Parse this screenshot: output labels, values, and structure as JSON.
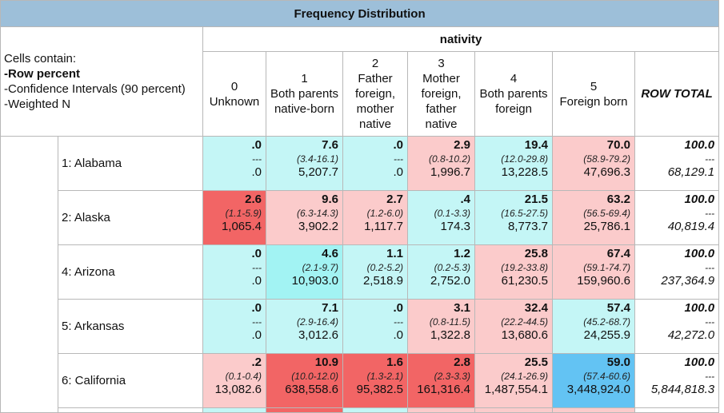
{
  "title": "Frequency Distribution",
  "column_variable": "nativity",
  "legend": {
    "line1": "Cells contain:",
    "line2": "-Row percent",
    "line3": "-Confidence Intervals (90 percent)",
    "line4": "-Weighted N"
  },
  "columns": [
    {
      "code": "0",
      "label": "Unknown"
    },
    {
      "code": "1",
      "label": "Both parents native-born"
    },
    {
      "code": "2",
      "label": "Father foreign, mother native"
    },
    {
      "code": "3",
      "label": "Mother foreign, father native"
    },
    {
      "code": "4",
      "label": "Both parents foreign"
    },
    {
      "code": "5",
      "label": "Foreign born"
    },
    {
      "code": "",
      "label": "ROW TOTAL"
    }
  ],
  "colors": {
    "header_bg": "#9dbfd9",
    "light_cyan": "#c4f6f6",
    "cyan": "#a2f3f3",
    "blue": "#63c3f3",
    "light_pink": "#fbcbcb",
    "pink": "#f7a1a1",
    "red": "#f26565",
    "white": "#ffffff"
  },
  "rows": [
    {
      "label": "1: Alabama",
      "cells": [
        {
          "v": ".0",
          "ci": "---",
          "n": ".0",
          "bg": "light_cyan"
        },
        {
          "v": "7.6",
          "ci": "(3.4-16.1)",
          "n": "5,207.7",
          "bg": "light_cyan"
        },
        {
          "v": ".0",
          "ci": "---",
          "n": ".0",
          "bg": "light_cyan"
        },
        {
          "v": "2.9",
          "ci": "(0.8-10.2)",
          "n": "1,996.7",
          "bg": "light_pink"
        },
        {
          "v": "19.4",
          "ci": "(12.0-29.8)",
          "n": "13,228.5",
          "bg": "light_cyan"
        },
        {
          "v": "70.0",
          "ci": "(58.9-79.2)",
          "n": "47,696.3",
          "bg": "light_pink"
        },
        {
          "v": "100.0",
          "ci": "---",
          "n": "68,129.1",
          "bg": "white"
        }
      ]
    },
    {
      "label": "2: Alaska",
      "cells": [
        {
          "v": "2.6",
          "ci": "(1.1-5.9)",
          "n": "1,065.4",
          "bg": "red"
        },
        {
          "v": "9.6",
          "ci": "(6.3-14.3)",
          "n": "3,902.2",
          "bg": "light_pink"
        },
        {
          "v": "2.7",
          "ci": "(1.2-6.0)",
          "n": "1,117.7",
          "bg": "light_pink"
        },
        {
          "v": ".4",
          "ci": "(0.1-3.3)",
          "n": "174.3",
          "bg": "light_cyan"
        },
        {
          "v": "21.5",
          "ci": "(16.5-27.5)",
          "n": "8,773.7",
          "bg": "light_cyan"
        },
        {
          "v": "63.2",
          "ci": "(56.5-69.4)",
          "n": "25,786.1",
          "bg": "light_pink"
        },
        {
          "v": "100.0",
          "ci": "---",
          "n": "40,819.4",
          "bg": "white"
        }
      ]
    },
    {
      "label": "4: Arizona",
      "cells": [
        {
          "v": ".0",
          "ci": "---",
          "n": ".0",
          "bg": "light_cyan"
        },
        {
          "v": "4.6",
          "ci": "(2.1-9.7)",
          "n": "10,903.0",
          "bg": "cyan"
        },
        {
          "v": "1.1",
          "ci": "(0.2-5.2)",
          "n": "2,518.9",
          "bg": "light_cyan"
        },
        {
          "v": "1.2",
          "ci": "(0.2-5.3)",
          "n": "2,752.0",
          "bg": "light_cyan"
        },
        {
          "v": "25.8",
          "ci": "(19.2-33.8)",
          "n": "61,230.5",
          "bg": "light_pink"
        },
        {
          "v": "67.4",
          "ci": "(59.1-74.7)",
          "n": "159,960.6",
          "bg": "light_pink"
        },
        {
          "v": "100.0",
          "ci": "---",
          "n": "237,364.9",
          "bg": "white"
        }
      ]
    },
    {
      "label": "5: Arkansas",
      "cells": [
        {
          "v": ".0",
          "ci": "---",
          "n": ".0",
          "bg": "light_cyan"
        },
        {
          "v": "7.1",
          "ci": "(2.9-16.4)",
          "n": "3,012.6",
          "bg": "light_cyan"
        },
        {
          "v": ".0",
          "ci": "---",
          "n": ".0",
          "bg": "light_cyan"
        },
        {
          "v": "3.1",
          "ci": "(0.8-11.5)",
          "n": "1,322.8",
          "bg": "light_pink"
        },
        {
          "v": "32.4",
          "ci": "(22.2-44.5)",
          "n": "13,680.6",
          "bg": "light_pink"
        },
        {
          "v": "57.4",
          "ci": "(45.2-68.7)",
          "n": "24,255.9",
          "bg": "light_cyan"
        },
        {
          "v": "100.0",
          "ci": "---",
          "n": "42,272.0",
          "bg": "white"
        }
      ]
    },
    {
      "label": "6: California",
      "cells": [
        {
          "v": ".2",
          "ci": "(0.1-0.4)",
          "n": "13,082.6",
          "bg": "light_pink"
        },
        {
          "v": "10.9",
          "ci": "(10.0-12.0)",
          "n": "638,558.6",
          "bg": "red"
        },
        {
          "v": "1.6",
          "ci": "(1.3-2.1)",
          "n": "95,382.5",
          "bg": "red"
        },
        {
          "v": "2.8",
          "ci": "(2.3-3.3)",
          "n": "161,316.4",
          "bg": "red"
        },
        {
          "v": "25.5",
          "ci": "(24.1-26.9)",
          "n": "1,487,554.1",
          "bg": "light_pink"
        },
        {
          "v": "59.0",
          "ci": "(57.4-60.6)",
          "n": "3,448,924.0",
          "bg": "blue"
        },
        {
          "v": "100.0",
          "ci": "---",
          "n": "5,844,818.3",
          "bg": "white"
        }
      ]
    }
  ],
  "partial_row_colors": [
    "white",
    "light_cyan",
    "red",
    "light_cyan",
    "light_pink",
    "light_pink",
    "light_pink",
    "white"
  ]
}
